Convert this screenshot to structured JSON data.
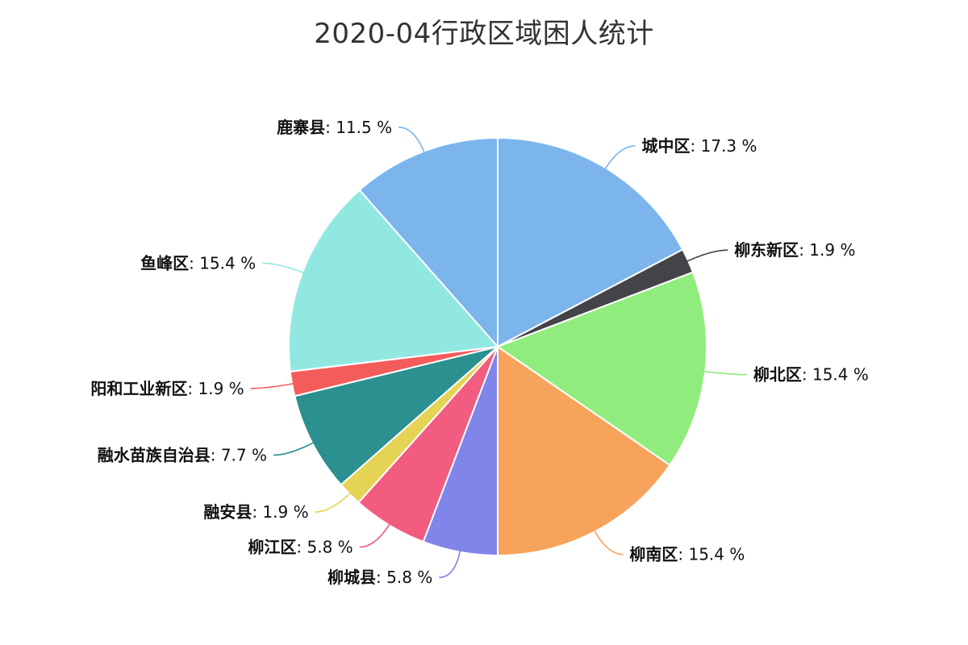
{
  "chart_data": {
    "type": "pie",
    "title": "2020-04行政区域困人统计",
    "slices": [
      {
        "name": "城中区",
        "value": 17.3,
        "label": "17.3 %",
        "color": "#7cb5ec"
      },
      {
        "name": "柳东新区",
        "value": 1.9,
        "label": "1.9 %",
        "color": "#434348"
      },
      {
        "name": "柳北区",
        "value": 15.4,
        "label": "15.4 %",
        "color": "#90ed7d"
      },
      {
        "name": "柳南区",
        "value": 15.4,
        "label": "15.4 %",
        "color": "#f7a35c"
      },
      {
        "name": "柳城县",
        "value": 5.8,
        "label": "5.8 %",
        "color": "#8085e9"
      },
      {
        "name": "柳江区",
        "value": 5.8,
        "label": "5.8 %",
        "color": "#f15c80"
      },
      {
        "name": "融安县",
        "value": 1.9,
        "label": "1.9 %",
        "color": "#e4d354"
      },
      {
        "name": "融水苗族自治县",
        "value": 7.7,
        "label": "7.7 %",
        "color": "#2b908f"
      },
      {
        "name": "阳和工业新区",
        "value": 1.9,
        "label": "1.9 %",
        "color": "#f45b5b"
      },
      {
        "name": "鱼峰区",
        "value": 15.4,
        "label": "15.4 %",
        "color": "#91e8e1"
      },
      {
        "name": "鹿寨县",
        "value": 11.5,
        "label": "11.5 %",
        "color": "#7cb5ec"
      }
    ],
    "legend": "none",
    "data_labels": "name: percent"
  }
}
